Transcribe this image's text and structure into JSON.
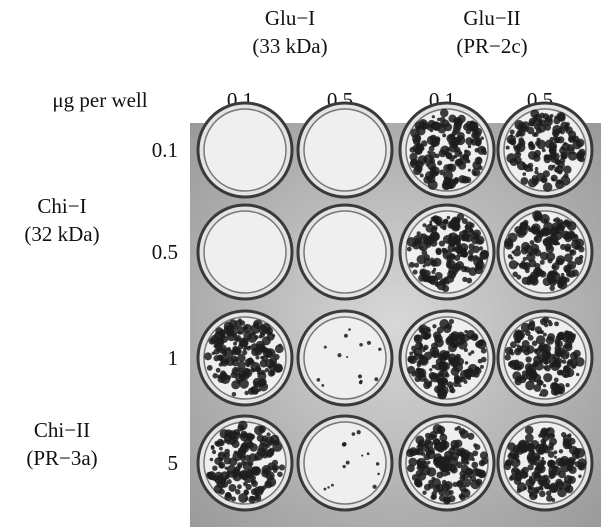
{
  "column_groups": [
    {
      "title": "Glu−I",
      "subtitle": "(33 kDa)"
    },
    {
      "title": "Glu−II",
      "subtitle": "(PR−2c)"
    }
  ],
  "column_header_label": "μg per well",
  "columns": [
    "0.1",
    "0.5",
    "0.1",
    "0.5"
  ],
  "row_groups": [
    {
      "title": "Chi−I",
      "subtitle": "(32 kDa)"
    },
    {
      "title": "Chi−II",
      "subtitle": "(PR−3a)"
    }
  ],
  "rows": [
    "0.1",
    "0.5",
    "1",
    "5"
  ]
}
